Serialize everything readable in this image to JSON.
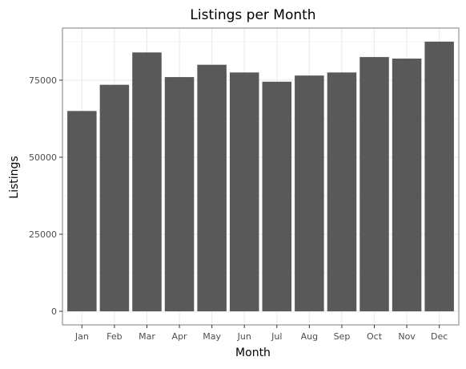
{
  "chart_data": {
    "type": "bar",
    "title": "Listings per Month",
    "xlabel": "Month",
    "ylabel": "Listings",
    "categories": [
      "Jan",
      "Feb",
      "Mar",
      "Apr",
      "May",
      "Jun",
      "Jul",
      "Aug",
      "Sep",
      "Oct",
      "Nov",
      "Dec"
    ],
    "values": [
      65000,
      73500,
      84000,
      76000,
      80000,
      77500,
      74500,
      76500,
      77500,
      82500,
      82000,
      87500
    ],
    "ylim": [
      -4400,
      91900
    ],
    "yticks": [
      0,
      25000,
      50000,
      75000
    ],
    "ytick_labels": [
      "0",
      "25000",
      "50000",
      "75000"
    ],
    "grid": true,
    "legend": "none",
    "bar_color": "#595959",
    "panel_border_color": "#7f7f7f",
    "grid_color": "#ebebeb"
  }
}
